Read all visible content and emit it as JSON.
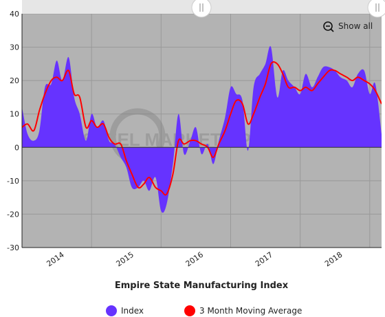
{
  "chart_data": {
    "type": "area",
    "title": "Empire State Manufacturing Index",
    "xlabel": "",
    "ylabel": "",
    "ylim": [
      -30,
      40
    ],
    "yticks": [
      "-30",
      "-20",
      "-10",
      "0",
      "10",
      "20",
      "30",
      "40"
    ],
    "x_categories": [
      "2014",
      "2015",
      "2016",
      "2017",
      "2018"
    ],
    "grid": true,
    "legend_position": "bottom",
    "controls": {
      "show_all_label": "Show all"
    },
    "watermark": "STEEL MARKET UPDATE",
    "colors": {
      "index": "#6633ff",
      "moving_average": "#ff0000",
      "plot_bg": "#b3b3b3"
    },
    "series": [
      {
        "name": "Index",
        "kind": "area",
        "x": [
          2013.5,
          2013.58,
          2013.67,
          2013.75,
          2013.83,
          2013.92,
          2014.0,
          2014.08,
          2014.17,
          2014.25,
          2014.33,
          2014.42,
          2014.5,
          2014.58,
          2014.67,
          2014.75,
          2014.83,
          2014.92,
          2015.0,
          2015.08,
          2015.17,
          2015.25,
          2015.33,
          2015.42,
          2015.5,
          2015.58,
          2015.67,
          2015.75,
          2015.83,
          2015.92,
          2016.0,
          2016.08,
          2016.17,
          2016.25,
          2016.33,
          2016.42,
          2016.5,
          2016.58,
          2016.67,
          2016.75,
          2016.83,
          2016.92,
          2017.0,
          2017.08,
          2017.17,
          2017.25,
          2017.33,
          2017.42,
          2017.5,
          2017.58,
          2017.67,
          2017.75,
          2017.83,
          2017.92,
          2018.0,
          2018.08,
          2018.17,
          2018.25,
          2018.33,
          2018.42,
          2018.5,
          2018.58,
          2018.67
        ],
        "values": [
          12,
          4,
          2,
          5,
          18,
          19,
          26,
          20,
          27,
          15,
          10,
          2,
          10,
          6,
          8,
          2,
          1,
          -3,
          -6,
          -12,
          -12,
          -10,
          -13,
          -9,
          -19,
          -17,
          -5,
          10,
          -2,
          2,
          6,
          -2,
          1,
          -5,
          2,
          9,
          18,
          16,
          14,
          -1,
          18,
          22,
          25,
          30,
          15,
          23,
          20,
          18,
          16,
          22,
          18,
          21,
          24,
          24,
          23,
          21,
          20,
          18,
          22,
          23,
          16,
          19,
          4
        ],
        "legend_label": "Index"
      },
      {
        "name": "3 Month Moving Average",
        "kind": "line",
        "x": [
          2013.5,
          2013.58,
          2013.67,
          2013.75,
          2013.83,
          2013.92,
          2014.0,
          2014.08,
          2014.17,
          2014.25,
          2014.33,
          2014.42,
          2014.5,
          2014.58,
          2014.67,
          2014.75,
          2014.83,
          2014.92,
          2015.0,
          2015.08,
          2015.17,
          2015.25,
          2015.33,
          2015.42,
          2015.5,
          2015.58,
          2015.67,
          2015.75,
          2015.83,
          2015.92,
          2016.0,
          2016.08,
          2016.17,
          2016.25,
          2016.33,
          2016.42,
          2016.5,
          2016.58,
          2016.67,
          2016.75,
          2016.83,
          2016.92,
          2017.0,
          2017.08,
          2017.17,
          2017.25,
          2017.33,
          2017.42,
          2017.5,
          2017.58,
          2017.67,
          2017.75,
          2017.83,
          2017.92,
          2018.0,
          2018.08,
          2018.17,
          2018.25,
          2018.33,
          2018.42,
          2018.5,
          2018.58,
          2018.67
        ],
        "values": [
          6,
          7,
          5,
          11,
          16,
          20,
          21,
          20,
          23,
          16,
          15,
          6,
          8,
          6,
          7,
          3,
          1,
          1,
          -4,
          -8,
          -12,
          -11,
          -9,
          -12,
          -13,
          -14,
          -8,
          2,
          1,
          2,
          2,
          1,
          0,
          -3,
          1,
          5,
          10,
          14,
          13,
          7,
          10,
          15,
          19,
          25,
          25,
          22,
          18,
          18,
          17,
          18,
          17,
          19,
          21,
          23,
          23,
          22,
          21,
          20,
          21,
          20,
          19,
          17,
          13
        ],
        "legend_label": "3 Month Moving Average"
      }
    ]
  }
}
